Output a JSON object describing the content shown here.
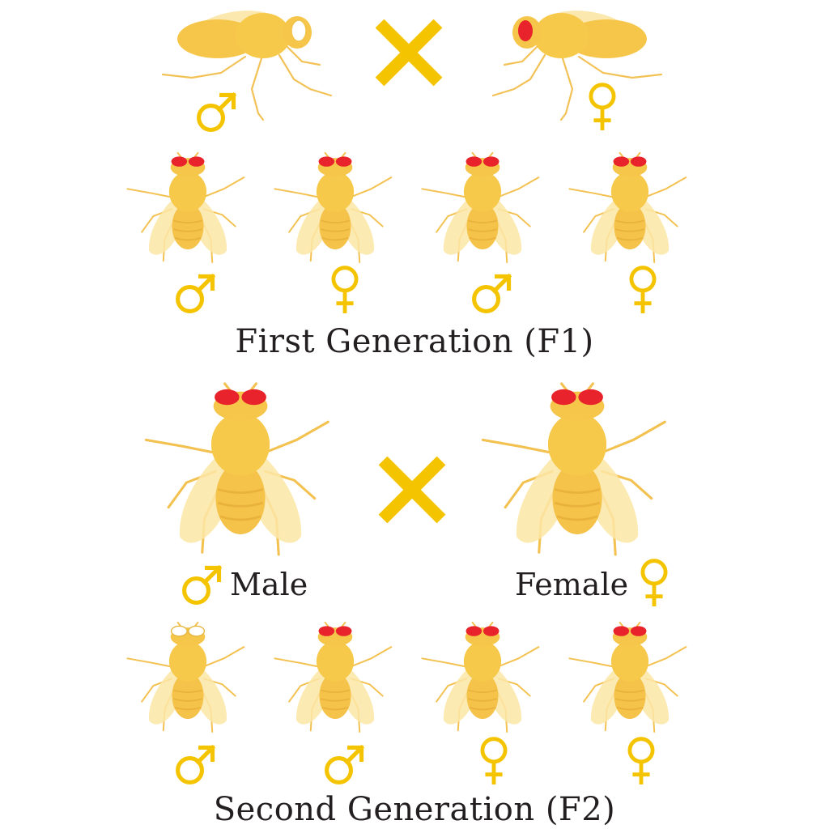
{
  "captions": {
    "first_generation": "First Generation (F1)",
    "second_generation": "Second Generation (F2)"
  },
  "labels": {
    "male": "Male",
    "female": "Female"
  },
  "symbols": {
    "cross": "cross-symbol-icon",
    "male": "male-symbol-icon",
    "female": "female-symbol-icon"
  },
  "colors": {
    "fly_body": "#f7c94a",
    "fly_wing": "#fbe6a6",
    "red_eye": "#e8232b",
    "white_eye": "#ffffff",
    "symbol_gold": "#f5c400",
    "text": "#231f20"
  },
  "parents": [
    {
      "sex": "male",
      "eye_color": "white",
      "view": "side"
    },
    {
      "sex": "female",
      "eye_color": "red",
      "view": "side"
    }
  ],
  "f1": [
    {
      "sex": "male",
      "eye_color": "red"
    },
    {
      "sex": "female",
      "eye_color": "red"
    },
    {
      "sex": "male",
      "eye_color": "red"
    },
    {
      "sex": "female",
      "eye_color": "red"
    }
  ],
  "f1_cross": [
    {
      "sex": "male",
      "eye_color": "red"
    },
    {
      "sex": "female",
      "eye_color": "red"
    }
  ],
  "f2": [
    {
      "sex": "male",
      "eye_color": "white"
    },
    {
      "sex": "male",
      "eye_color": "red"
    },
    {
      "sex": "female",
      "eye_color": "red"
    },
    {
      "sex": "female",
      "eye_color": "red"
    }
  ]
}
